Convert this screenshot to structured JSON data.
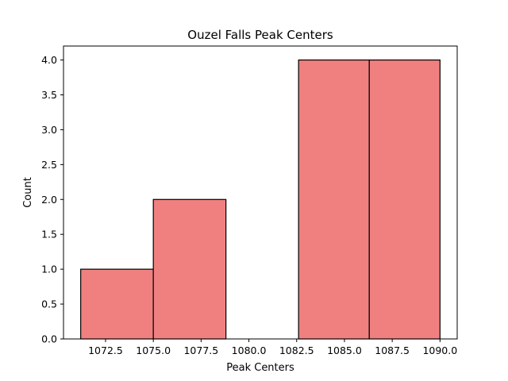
{
  "chart_data": {
    "type": "histogram",
    "title": "Ouzel Falls Peak Centers",
    "xlabel": "Peak Centers",
    "ylabel": "Count",
    "bins": [
      {
        "start": 1071.2,
        "end": 1075.0,
        "count": 1
      },
      {
        "start": 1075.0,
        "end": 1078.8,
        "count": 2
      },
      {
        "start": 1078.8,
        "end": 1082.6,
        "count": 0
      },
      {
        "start": 1082.6,
        "end": 1086.3,
        "count": 4
      },
      {
        "start": 1086.3,
        "end": 1090.0,
        "count": 4
      }
    ],
    "xlim": [
      1070.3,
      1090.9
    ],
    "ylim": [
      0,
      4.2
    ],
    "xticks": [
      1072.5,
      1075.0,
      1077.5,
      1080.0,
      1082.5,
      1085.0,
      1087.5,
      1090.0
    ],
    "xtick_labels": [
      "1072.5",
      "1075.0",
      "1077.5",
      "1080.0",
      "1082.5",
      "1085.0",
      "1087.5",
      "1090.0"
    ],
    "yticks": [
      0,
      0.5,
      1.0,
      1.5,
      2.0,
      2.5,
      3.0,
      3.5,
      4.0
    ],
    "ytick_labels": [
      "0.0",
      "0.5",
      "1.0",
      "1.5",
      "2.0",
      "2.5",
      "3.0",
      "3.5",
      "4.0"
    ],
    "bar_color": "#f08080",
    "edge_color": "#000000",
    "grid": false,
    "legend": "none"
  }
}
